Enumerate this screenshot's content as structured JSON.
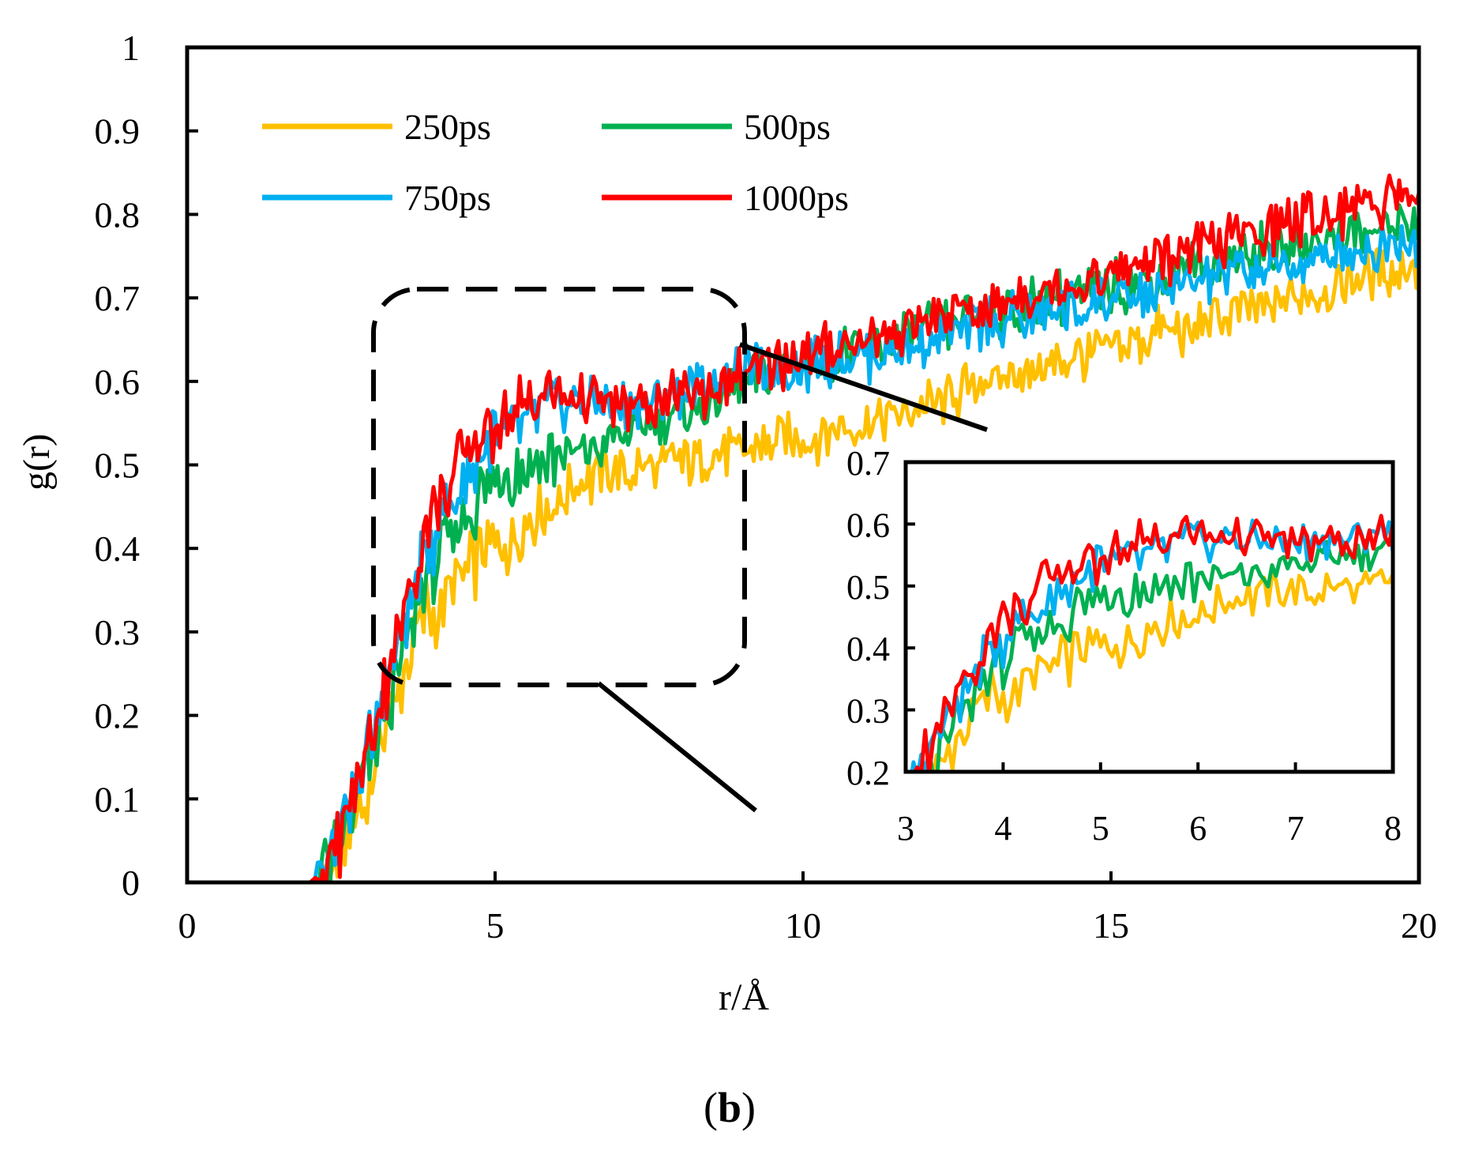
{
  "chart_data": {
    "type": "line",
    "panel_label": {
      "open": "(",
      "letter": "b",
      "close": ")"
    },
    "xlabel": "r/Å",
    "ylabel": "g(r)",
    "xlim": [
      0,
      20
    ],
    "ylim": [
      0,
      1
    ],
    "x_ticks": [
      "0",
      "5",
      "10",
      "15",
      "20"
    ],
    "y_ticks": [
      "0",
      "0.1",
      "0.2",
      "0.3",
      "0.4",
      "0.5",
      "0.6",
      "0.7",
      "0.8",
      "0.9",
      "1"
    ],
    "legend_position": "top-left",
    "series": [
      {
        "name": "250ps",
        "color": "#FFC000",
        "points": [
          [
            0,
            0
          ],
          [
            2.0,
            0
          ],
          [
            2.3,
            0.01
          ],
          [
            2.6,
            0.05
          ],
          [
            3.0,
            0.13
          ],
          [
            3.3,
            0.2
          ],
          [
            3.6,
            0.27
          ],
          [
            3.9,
            0.33
          ],
          [
            4.1,
            0.32
          ],
          [
            4.3,
            0.36
          ],
          [
            4.6,
            0.38
          ],
          [
            5.0,
            0.4
          ],
          [
            5.5,
            0.43
          ],
          [
            6.0,
            0.46
          ],
          [
            6.5,
            0.48
          ],
          [
            7.0,
            0.49
          ],
          [
            7.5,
            0.5
          ],
          [
            8.0,
            0.5
          ],
          [
            8.5,
            0.51
          ],
          [
            9.0,
            0.52
          ],
          [
            10.0,
            0.53
          ],
          [
            11.0,
            0.55
          ],
          [
            12.0,
            0.57
          ],
          [
            13.0,
            0.6
          ],
          [
            14.0,
            0.62
          ],
          [
            15.0,
            0.64
          ],
          [
            16.0,
            0.66
          ],
          [
            17.0,
            0.68
          ],
          [
            18.0,
            0.7
          ],
          [
            19.0,
            0.72
          ],
          [
            20.0,
            0.74
          ]
        ]
      },
      {
        "name": "500ps",
        "color": "#00B050",
        "points": [
          [
            0,
            0
          ],
          [
            2.0,
            0
          ],
          [
            2.3,
            0.02
          ],
          [
            2.6,
            0.07
          ],
          [
            3.0,
            0.15
          ],
          [
            3.3,
            0.22
          ],
          [
            3.6,
            0.3
          ],
          [
            3.9,
            0.36
          ],
          [
            4.2,
            0.4
          ],
          [
            4.5,
            0.44
          ],
          [
            5.0,
            0.48
          ],
          [
            5.5,
            0.5
          ],
          [
            6.0,
            0.51
          ],
          [
            6.5,
            0.52
          ],
          [
            7.0,
            0.53
          ],
          [
            7.5,
            0.55
          ],
          [
            8.0,
            0.56
          ],
          [
            8.5,
            0.57
          ],
          [
            9.0,
            0.6
          ],
          [
            10.0,
            0.62
          ],
          [
            11.0,
            0.64
          ],
          [
            12.0,
            0.66
          ],
          [
            13.0,
            0.68
          ],
          [
            14.0,
            0.7
          ],
          [
            15.0,
            0.71
          ],
          [
            16.0,
            0.73
          ],
          [
            17.0,
            0.75
          ],
          [
            18.0,
            0.76
          ],
          [
            19.0,
            0.78
          ],
          [
            20.0,
            0.79
          ]
        ]
      },
      {
        "name": "750ps",
        "color": "#00B0F0",
        "points": [
          [
            0,
            0
          ],
          [
            2.0,
            0
          ],
          [
            2.3,
            0.02
          ],
          [
            2.6,
            0.08
          ],
          [
            3.0,
            0.17
          ],
          [
            3.3,
            0.25
          ],
          [
            3.6,
            0.33
          ],
          [
            3.9,
            0.4
          ],
          [
            4.2,
            0.45
          ],
          [
            4.5,
            0.49
          ],
          [
            5.0,
            0.53
          ],
          [
            5.5,
            0.55
          ],
          [
            6.0,
            0.57
          ],
          [
            6.5,
            0.58
          ],
          [
            7.0,
            0.57
          ],
          [
            7.5,
            0.58
          ],
          [
            8.0,
            0.59
          ],
          [
            8.5,
            0.6
          ],
          [
            9.0,
            0.61
          ],
          [
            10.0,
            0.62
          ],
          [
            11.0,
            0.63
          ],
          [
            12.0,
            0.65
          ],
          [
            13.0,
            0.67
          ],
          [
            14.0,
            0.68
          ],
          [
            15.0,
            0.7
          ],
          [
            16.0,
            0.71
          ],
          [
            17.0,
            0.73
          ],
          [
            18.0,
            0.74
          ],
          [
            19.0,
            0.76
          ],
          [
            20.0,
            0.77
          ]
        ]
      },
      {
        "name": "1000ps",
        "color": "#FF0000",
        "points": [
          [
            0,
            0
          ],
          [
            2.0,
            0
          ],
          [
            2.3,
            0.02
          ],
          [
            2.6,
            0.08
          ],
          [
            3.0,
            0.18
          ],
          [
            3.3,
            0.26
          ],
          [
            3.6,
            0.35
          ],
          [
            3.9,
            0.43
          ],
          [
            4.2,
            0.47
          ],
          [
            4.5,
            0.51
          ],
          [
            5.0,
            0.55
          ],
          [
            5.5,
            0.57
          ],
          [
            6.0,
            0.58
          ],
          [
            6.5,
            0.58
          ],
          [
            7.0,
            0.57
          ],
          [
            7.5,
            0.57
          ],
          [
            8.0,
            0.58
          ],
          [
            8.5,
            0.59
          ],
          [
            9.0,
            0.61
          ],
          [
            10.0,
            0.63
          ],
          [
            11.0,
            0.65
          ],
          [
            12.0,
            0.67
          ],
          [
            13.0,
            0.69
          ],
          [
            14.0,
            0.71
          ],
          [
            15.0,
            0.73
          ],
          [
            16.0,
            0.75
          ],
          [
            17.0,
            0.77
          ],
          [
            18.0,
            0.79
          ],
          [
            19.0,
            0.81
          ],
          [
            20.0,
            0.83
          ]
        ]
      }
    ],
    "zoom_region": {
      "x": [
        3,
        9
      ],
      "y": [
        0.24,
        0.71
      ]
    },
    "inset": {
      "xlim": [
        3,
        8
      ],
      "ylim": [
        0.2,
        0.7
      ],
      "x_ticks": [
        "3",
        "4",
        "5",
        "6",
        "7",
        "8"
      ],
      "y_ticks": [
        "0.2",
        "0.3",
        "0.4",
        "0.5",
        "0.6",
        "0.7"
      ]
    }
  }
}
